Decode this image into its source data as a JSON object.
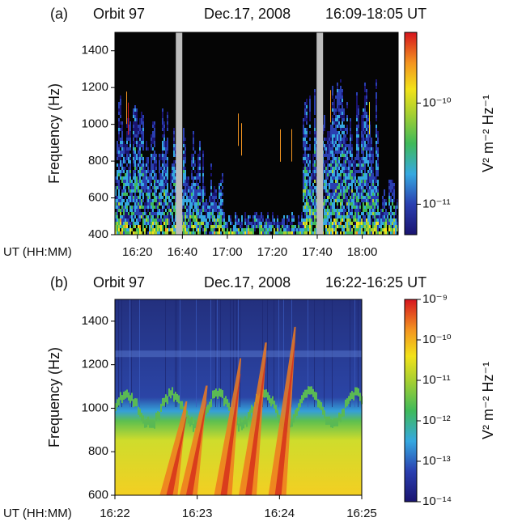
{
  "chart_data": [
    {
      "type": "spectrogram",
      "panel": "(a)",
      "orbit": "Orbit 97",
      "date": "Dec.17, 2008",
      "time_range": "16:09-18:05 UT",
      "y_label": "Frequency (Hz)",
      "x_label": "UT (HH:MM)",
      "xlim": [
        "16:10",
        "18:16"
      ],
      "xticks": [
        "16:20",
        "16:40",
        "17:00",
        "17:20",
        "17:40",
        "18:00"
      ],
      "ylim": [
        400,
        1500
      ],
      "yticks": [
        400,
        600,
        800,
        1000,
        1200,
        1400
      ],
      "colorbar": {
        "label": "V² m⁻² Hz⁻¹",
        "log": true,
        "lim": [
          5e-12,
          5e-10
        ],
        "ticks": [
          {
            "value": 1e-11,
            "label": "10⁻¹¹"
          },
          {
            "value": 1e-10,
            "label": "10⁻¹⁰"
          }
        ]
      }
    },
    {
      "type": "spectrogram",
      "panel": "(b)",
      "orbit": "Orbit 97",
      "date": "Dec.17, 2008",
      "time_range": "16:22-16:25 UT",
      "y_label": "Frequency (Hz)",
      "x_label": "UT (HH:MM)",
      "xlim": [
        "16:22",
        "16:25"
      ],
      "xticks": [
        "16:22",
        "16:23",
        "16:24",
        "16:25"
      ],
      "ylim": [
        600,
        1500
      ],
      "yticks": [
        600,
        800,
        1000,
        1200,
        1400
      ],
      "colorbar": {
        "label": "V² m⁻² Hz⁻¹",
        "log": true,
        "lim": [
          1e-14,
          1e-09
        ],
        "ticks": [
          {
            "value": 1e-14,
            "label": "10⁻¹⁴"
          },
          {
            "value": 1e-13,
            "label": "10⁻¹³"
          },
          {
            "value": 1e-12,
            "label": "10⁻¹²"
          },
          {
            "value": 1e-11,
            "label": "10⁻¹¹"
          },
          {
            "value": 1e-10,
            "label": "10⁻¹⁰"
          },
          {
            "value": 1e-09,
            "label": "10⁻⁹"
          }
        ]
      }
    }
  ]
}
